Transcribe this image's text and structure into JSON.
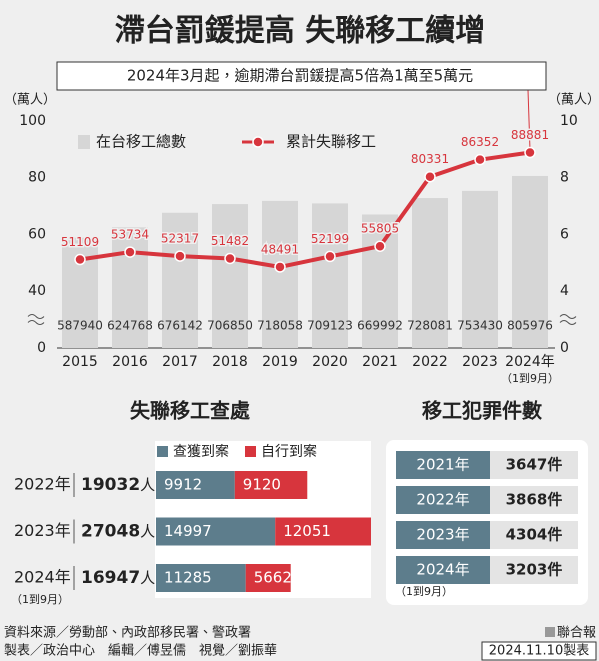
{
  "title": "滯台罰鍰提高  失聯移工續增",
  "annotation": "2024年3月起，逾期滯台罰鍰提高5倍為1萬至5萬元",
  "chart_data": [
    {
      "type": "combo",
      "categories": [
        "2015",
        "2016",
        "2017",
        "2018",
        "2019",
        "2020",
        "2021",
        "2022",
        "2023",
        "2024年"
      ],
      "x_note": "（1到9月）",
      "ylabel": "（萬人）",
      "y2label": "（萬人）",
      "ylim": [
        0,
        100
      ],
      "yticks": [
        0,
        40,
        60,
        80,
        100
      ],
      "ybreak": [
        0,
        40
      ],
      "y2lim": [
        0,
        10
      ],
      "y2ticks": [
        0,
        4,
        6,
        8,
        10
      ],
      "y2break": [
        0,
        4
      ],
      "series": [
        {
          "name": "在台移工總數",
          "kind": "bar",
          "color": "#d6d6d6",
          "values": [
            58.794,
            62.4768,
            67.6142,
            70.685,
            71.8058,
            70.9123,
            66.9992,
            72.8081,
            75.343,
            80.5976
          ],
          "value_labels": [
            "587940",
            "624768",
            "676142",
            "706850",
            "718058",
            "709123",
            "669992",
            "728081",
            "753430",
            "805976"
          ]
        },
        {
          "name": "累計失聯移工",
          "kind": "line",
          "axis": "y2",
          "color": "#d7353d",
          "values": [
            5.1109,
            5.3734,
            5.2317,
            5.1482,
            4.8491,
            5.2199,
            5.5805,
            8.0331,
            8.6352,
            8.8881
          ],
          "value_labels": [
            "51109",
            "53734",
            "52317",
            "51482",
            "48491",
            "52199",
            "55805",
            "80331",
            "86352",
            "88881"
          ]
        }
      ]
    },
    {
      "type": "bar",
      "orientation": "horizontal",
      "stacked": true,
      "title": "失聯移工查處",
      "categories": [
        "2022年",
        "2023年",
        "2024年"
      ],
      "category_note": "（1到9月）",
      "totals": [
        19032,
        27048,
        16947
      ],
      "total_unit": "人",
      "series": [
        {
          "name": "查獲到案",
          "color": "#5d7d8c",
          "values": [
            9912,
            14997,
            11285
          ]
        },
        {
          "name": "自行到案",
          "color": "#d7353d",
          "values": [
            9120,
            12051,
            5662
          ]
        }
      ]
    }
  ],
  "crime_table": {
    "title": "移工犯罪件數",
    "rows": [
      [
        "2021年",
        "3647件"
      ],
      [
        "2022年",
        "3868件"
      ],
      [
        "2023年",
        "4304件"
      ],
      [
        "2024年",
        "3203件"
      ]
    ],
    "note": "（1到9月）"
  },
  "footer": {
    "source": "資料來源／勞動部、內政部移民署、警政署",
    "credits": "製表／政治中心　編輯／傅昱儒　視覺／劉振華",
    "brand": "聯合報",
    "date": "2024.11.10製表"
  }
}
